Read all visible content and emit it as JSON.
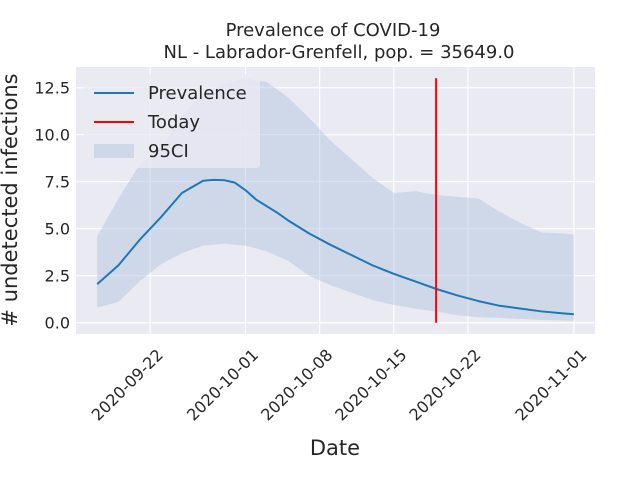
{
  "chart_data": {
    "type": "line",
    "title": "Prevalence of COVID-19",
    "subtitle": "NL - Labrador-Grenfell, pop. = 35649.0",
    "xlabel": "Date",
    "ylabel": "# undetected infections",
    "x_tick_labels": [
      "2020-09-22",
      "2020-10-01",
      "2020-10-08",
      "2020-10-15",
      "2020-10-22",
      "2020-11-01"
    ],
    "y_tick_labels": [
      "0.0",
      "2.5",
      "5.0",
      "7.5",
      "10.0",
      "12.5"
    ],
    "y_ticks": [
      0,
      2.5,
      5,
      7.5,
      10,
      12.5
    ],
    "xlim": [
      "2020-09-15",
      "2020-11-03"
    ],
    "ylim": [
      -0.6,
      13.6
    ],
    "grid": true,
    "legend_position": "upper-left",
    "series": [
      {
        "name": "Prevalence",
        "color": "#1f77b4",
        "points": [
          [
            "2020-09-17",
            2.05
          ],
          [
            "2020-09-19",
            3.05
          ],
          [
            "2020-09-21",
            4.4
          ],
          [
            "2020-09-23",
            5.6
          ],
          [
            "2020-09-25",
            6.9
          ],
          [
            "2020-09-27",
            7.55
          ],
          [
            "2020-09-28",
            7.6
          ],
          [
            "2020-09-29",
            7.58
          ],
          [
            "2020-09-30",
            7.45
          ],
          [
            "2020-10-01",
            7.05
          ],
          [
            "2020-10-02",
            6.55
          ],
          [
            "2020-10-04",
            5.85
          ],
          [
            "2020-10-05",
            5.45
          ],
          [
            "2020-10-07",
            4.75
          ],
          [
            "2020-10-09",
            4.15
          ],
          [
            "2020-10-11",
            3.6
          ],
          [
            "2020-10-13",
            3.05
          ],
          [
            "2020-10-15",
            2.6
          ],
          [
            "2020-10-17",
            2.2
          ],
          [
            "2020-10-19",
            1.8
          ],
          [
            "2020-10-21",
            1.45
          ],
          [
            "2020-10-23",
            1.15
          ],
          [
            "2020-10-25",
            0.9
          ],
          [
            "2020-10-27",
            0.75
          ],
          [
            "2020-10-29",
            0.6
          ],
          [
            "2020-10-31",
            0.5
          ],
          [
            "2020-11-01",
            0.45
          ]
        ]
      },
      {
        "name": "Today",
        "color": "#ff0000",
        "type": "vline",
        "x": "2020-10-19",
        "y_range": [
          0,
          13.0
        ]
      }
    ],
    "band": {
      "name": "95CI",
      "color": "#b0c4de",
      "upper": [
        [
          "2020-09-17",
          4.6
        ],
        [
          "2020-09-19",
          6.6
        ],
        [
          "2020-09-21",
          8.4
        ],
        [
          "2020-09-23",
          9.3
        ],
        [
          "2020-09-25",
          11.0
        ],
        [
          "2020-09-27",
          12.2
        ],
        [
          "2020-09-29",
          12.7
        ],
        [
          "2020-10-01",
          13.0
        ],
        [
          "2020-10-03",
          12.8
        ],
        [
          "2020-10-05",
          12.0
        ],
        [
          "2020-10-07",
          10.9
        ],
        [
          "2020-10-09",
          9.7
        ],
        [
          "2020-10-11",
          8.7
        ],
        [
          "2020-10-13",
          7.7
        ],
        [
          "2020-10-15",
          6.9
        ],
        [
          "2020-10-17",
          7.0
        ],
        [
          "2020-10-19",
          6.8
        ],
        [
          "2020-10-21",
          6.7
        ],
        [
          "2020-10-23",
          6.6
        ],
        [
          "2020-10-25",
          5.9
        ],
        [
          "2020-10-27",
          5.3
        ],
        [
          "2020-10-29",
          4.8
        ],
        [
          "2020-10-31",
          4.75
        ],
        [
          "2020-11-01",
          4.7
        ]
      ],
      "lower": [
        [
          "2020-09-17",
          0.8
        ],
        [
          "2020-09-19",
          1.1
        ],
        [
          "2020-09-21",
          2.2
        ],
        [
          "2020-09-23",
          3.1
        ],
        [
          "2020-09-25",
          3.7
        ],
        [
          "2020-09-27",
          4.1
        ],
        [
          "2020-09-29",
          4.2
        ],
        [
          "2020-10-01",
          4.1
        ],
        [
          "2020-10-03",
          3.8
        ],
        [
          "2020-10-05",
          3.3
        ],
        [
          "2020-10-07",
          2.5
        ],
        [
          "2020-10-09",
          2.0
        ],
        [
          "2020-10-11",
          1.6
        ],
        [
          "2020-10-13",
          1.2
        ],
        [
          "2020-10-15",
          0.95
        ],
        [
          "2020-10-17",
          0.75
        ],
        [
          "2020-10-19",
          0.6
        ],
        [
          "2020-10-21",
          0.4
        ],
        [
          "2020-10-23",
          0.3
        ],
        [
          "2020-10-25",
          0.25
        ],
        [
          "2020-10-27",
          0.2
        ],
        [
          "2020-10-29",
          0.15
        ],
        [
          "2020-10-31",
          0.12
        ],
        [
          "2020-11-01",
          0.1
        ]
      ]
    }
  }
}
